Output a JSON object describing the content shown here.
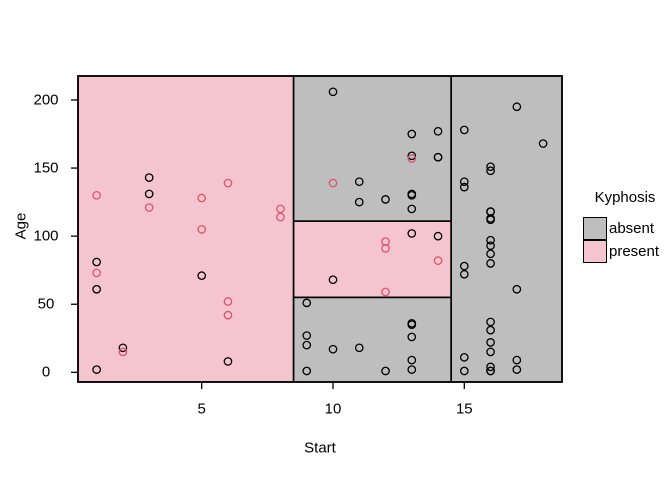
{
  "chart_data": {
    "type": "scatter",
    "title": "",
    "xlabel": "Start",
    "ylabel": "Age",
    "xlim": [
      0.29,
      18.72
    ],
    "ylim": [
      -7.1,
      217.6
    ],
    "x_ticks": [
      5,
      10,
      15
    ],
    "y_ticks": [
      0,
      50,
      100,
      150,
      200
    ],
    "grid": false,
    "legend": {
      "title": "Kyphosis",
      "position": "right-outside",
      "entries": [
        {
          "label": "absent",
          "color": "#BEBEBE"
        },
        {
          "label": "present",
          "color": "#F4C4CF"
        }
      ]
    },
    "colors": {
      "region_fill_absent": "#BEBEBE",
      "region_fill_present": "#F4C4CF",
      "point_absent": "#000000",
      "point_present": "#DF536B",
      "border": "#000000",
      "background": "#FFFFFF"
    },
    "partitions": [
      {
        "class": "present",
        "x": [
          0.29,
          8.5
        ],
        "y": [
          -7.1,
          217.6
        ],
        "rule": "Start < 8.5"
      },
      {
        "class": "absent",
        "x": [
          8.5,
          14.5
        ],
        "y": [
          111,
          217.6
        ],
        "rule": "8.5 <= Start < 14.5 & Age >= 111"
      },
      {
        "class": "present",
        "x": [
          8.5,
          14.5
        ],
        "y": [
          55,
          111
        ],
        "rule": "8.5 <= Start < 14.5 & 55 <= Age < 111"
      },
      {
        "class": "absent",
        "x": [
          8.5,
          14.5
        ],
        "y": [
          -7.1,
          55
        ],
        "rule": "8.5 <= Start < 14.5 & Age < 55"
      },
      {
        "class": "absent",
        "x": [
          14.5,
          18.72
        ],
        "y": [
          -7.1,
          217.6
        ],
        "rule": "Start >= 14.5"
      }
    ],
    "series": [
      {
        "name": "absent",
        "marker": "open-circle",
        "color": "#000000",
        "points": [
          [
            5,
            71
          ],
          [
            14,
            158
          ],
          [
            1,
            2
          ],
          [
            15,
            1
          ],
          [
            16,
            1
          ],
          [
            17,
            61
          ],
          [
            16,
            37
          ],
          [
            16,
            113
          ],
          [
            16,
            148
          ],
          [
            2,
            18
          ],
          [
            12,
            1
          ],
          [
            18,
            168
          ],
          [
            16,
            1
          ],
          [
            15,
            78
          ],
          [
            13,
            175
          ],
          [
            16,
            80
          ],
          [
            9,
            27
          ],
          [
            16,
            22
          ],
          [
            3,
            131
          ],
          [
            13,
            9
          ],
          [
            6,
            8
          ],
          [
            14,
            100
          ],
          [
            16,
            4
          ],
          [
            16,
            151
          ],
          [
            16,
            31
          ],
          [
            11,
            125
          ],
          [
            13,
            130
          ],
          [
            16,
            112
          ],
          [
            11,
            140
          ],
          [
            16,
            93
          ],
          [
            9,
            1
          ],
          [
            9,
            20
          ],
          [
            13,
            35
          ],
          [
            3,
            143
          ],
          [
            1,
            61
          ],
          [
            16,
            97
          ],
          [
            15,
            136
          ],
          [
            13,
            131
          ],
          [
            14,
            177
          ],
          [
            10,
            68
          ],
          [
            17,
            9
          ],
          [
            17,
            2
          ],
          [
            15,
            140
          ],
          [
            15,
            72
          ],
          [
            13,
            2
          ],
          [
            9,
            51
          ],
          [
            13,
            102
          ],
          [
            1,
            81
          ],
          [
            16,
            118
          ],
          [
            16,
            118
          ],
          [
            10,
            17
          ],
          [
            17,
            195
          ],
          [
            13,
            159
          ],
          [
            11,
            18
          ],
          [
            16,
            15
          ],
          [
            14,
            158
          ],
          [
            12,
            127
          ],
          [
            16,
            87
          ],
          [
            10,
            206
          ],
          [
            15,
            11
          ],
          [
            15,
            178
          ],
          [
            13,
            26
          ],
          [
            13,
            120
          ],
          [
            13,
            36
          ]
        ]
      },
      {
        "name": "present",
        "marker": "open-circle",
        "color": "#DF536B",
        "points": [
          [
            5,
            128
          ],
          [
            12,
            59
          ],
          [
            14,
            82
          ],
          [
            5,
            105
          ],
          [
            12,
            96
          ],
          [
            2,
            15
          ],
          [
            6,
            52
          ],
          [
            12,
            91
          ],
          [
            1,
            73
          ],
          [
            10,
            139
          ],
          [
            3,
            121
          ],
          [
            6,
            139
          ],
          [
            8,
            120
          ],
          [
            1,
            130
          ],
          [
            8,
            114
          ],
          [
            13,
            157
          ],
          [
            6,
            42
          ]
        ]
      }
    ]
  }
}
